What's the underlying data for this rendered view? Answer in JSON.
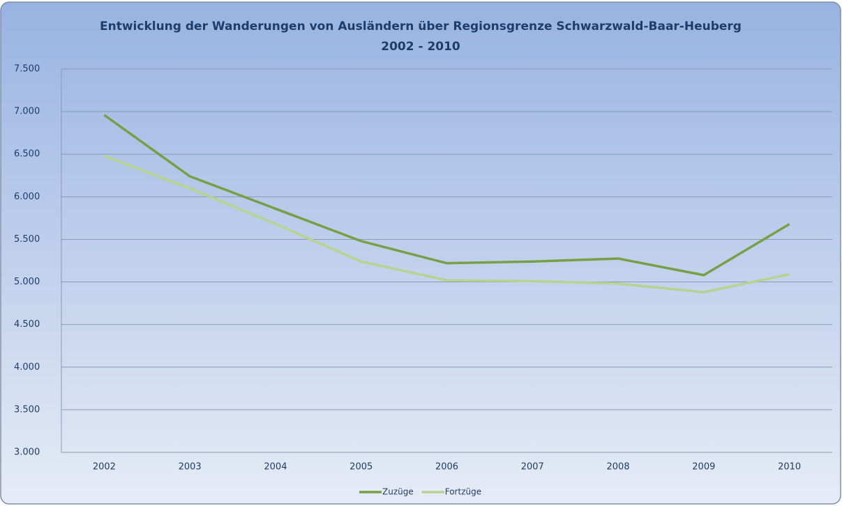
{
  "chart_data": {
    "type": "line",
    "title": "Entwicklung der Wanderungen von Ausländern über Regionsgrenze Schwarzwald-Baar-Heuberg",
    "subtitle": "2002 - 2010",
    "categories": [
      "2002",
      "2003",
      "2004",
      "2005",
      "2006",
      "2007",
      "2008",
      "2009",
      "2010"
    ],
    "series": [
      {
        "name": "Zuzüge",
        "color": "#77a046",
        "values": [
          6960,
          6240,
          5860,
          5480,
          5220,
          5240,
          5275,
          5080,
          5680
        ]
      },
      {
        "name": "Fortzüge",
        "color": "#b8d38e",
        "values": [
          6480,
          6100,
          5680,
          5240,
          5020,
          5010,
          4980,
          4880,
          5090
        ]
      }
    ],
    "ylim": [
      3000,
      7500
    ],
    "yticks": [
      {
        "value": 3000,
        "label": "3.000"
      },
      {
        "value": 3500,
        "label": "3.500"
      },
      {
        "value": 4000,
        "label": "4.000"
      },
      {
        "value": 4500,
        "label": "4.500"
      },
      {
        "value": 5000,
        "label": "5.000"
      },
      {
        "value": 5500,
        "label": "5.500"
      },
      {
        "value": 6000,
        "label": "6.000"
      },
      {
        "value": 6500,
        "label": "6.500"
      },
      {
        "value": 7000,
        "label": "7.000"
      },
      {
        "value": 7500,
        "label": "7.500"
      }
    ],
    "grid": true,
    "legend": "bottom"
  }
}
